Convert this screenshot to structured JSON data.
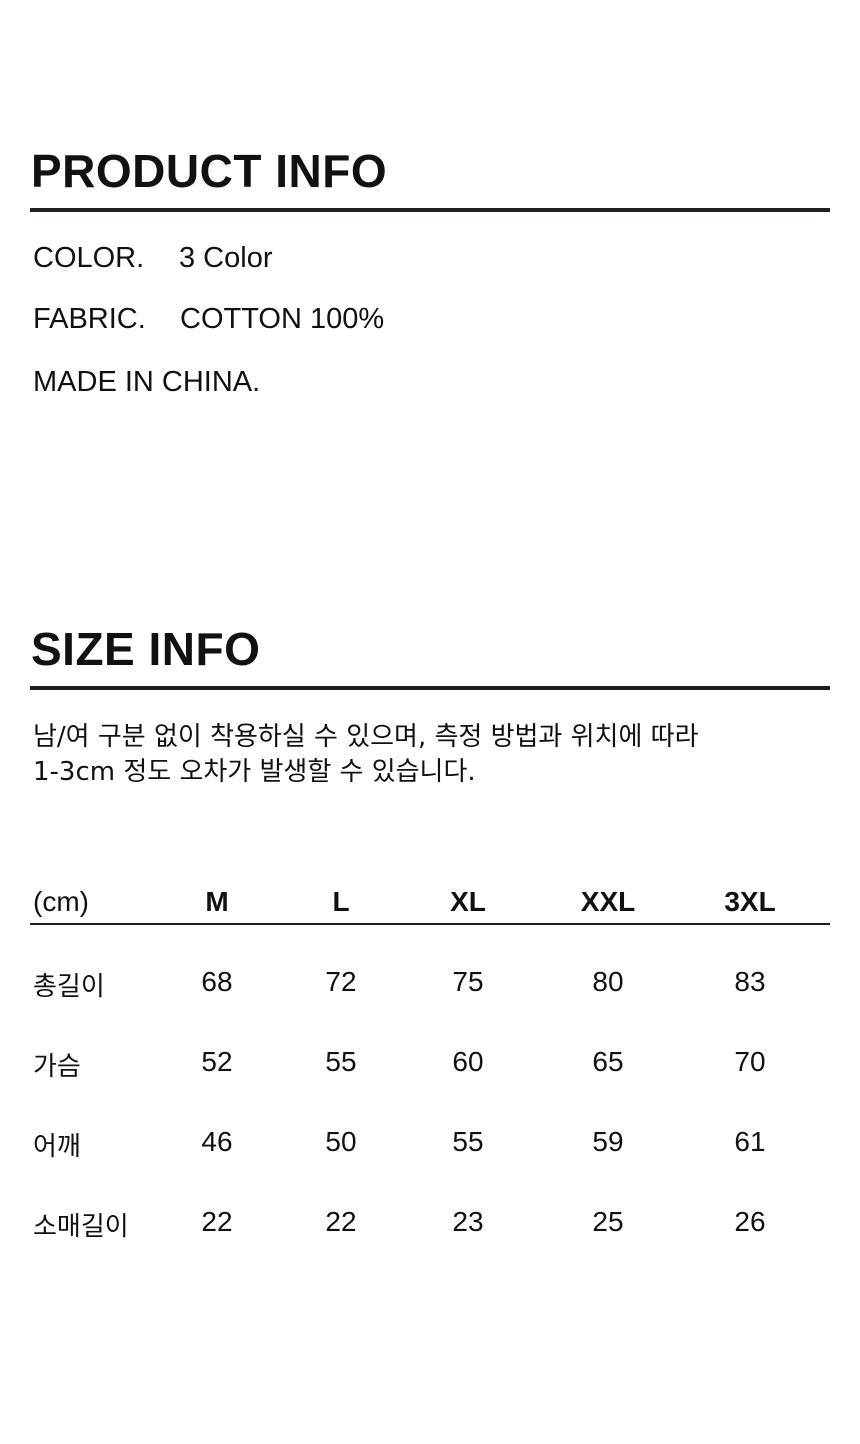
{
  "product_info": {
    "title": "PRODUCT INFO",
    "color_label": "COLOR.",
    "color_value": "3 Color",
    "fabric_label": "FABRIC.",
    "fabric_value": "COTTON 100%",
    "origin": "MADE IN CHINA."
  },
  "size_info": {
    "title": "SIZE INFO",
    "note_line1": "남/여 구분 없이 착용하실 수 있으며, 측정 방법과 위치에 따라",
    "note_line2": "1-3cm 정도 오차가 발생할 수 있습니다.",
    "table": {
      "headers": [
        "(cm)",
        "M",
        "L",
        "XL",
        "XXL",
        "3XL"
      ],
      "rows": [
        [
          "총길이",
          "68",
          "72",
          "75",
          "80",
          "83"
        ],
        [
          "가슴",
          "52",
          "55",
          "60",
          "65",
          "70"
        ],
        [
          "어깨",
          "46",
          "50",
          "55",
          "59",
          "61"
        ],
        [
          "소매길이",
          "22",
          "22",
          "23",
          "25",
          "26"
        ]
      ]
    }
  }
}
